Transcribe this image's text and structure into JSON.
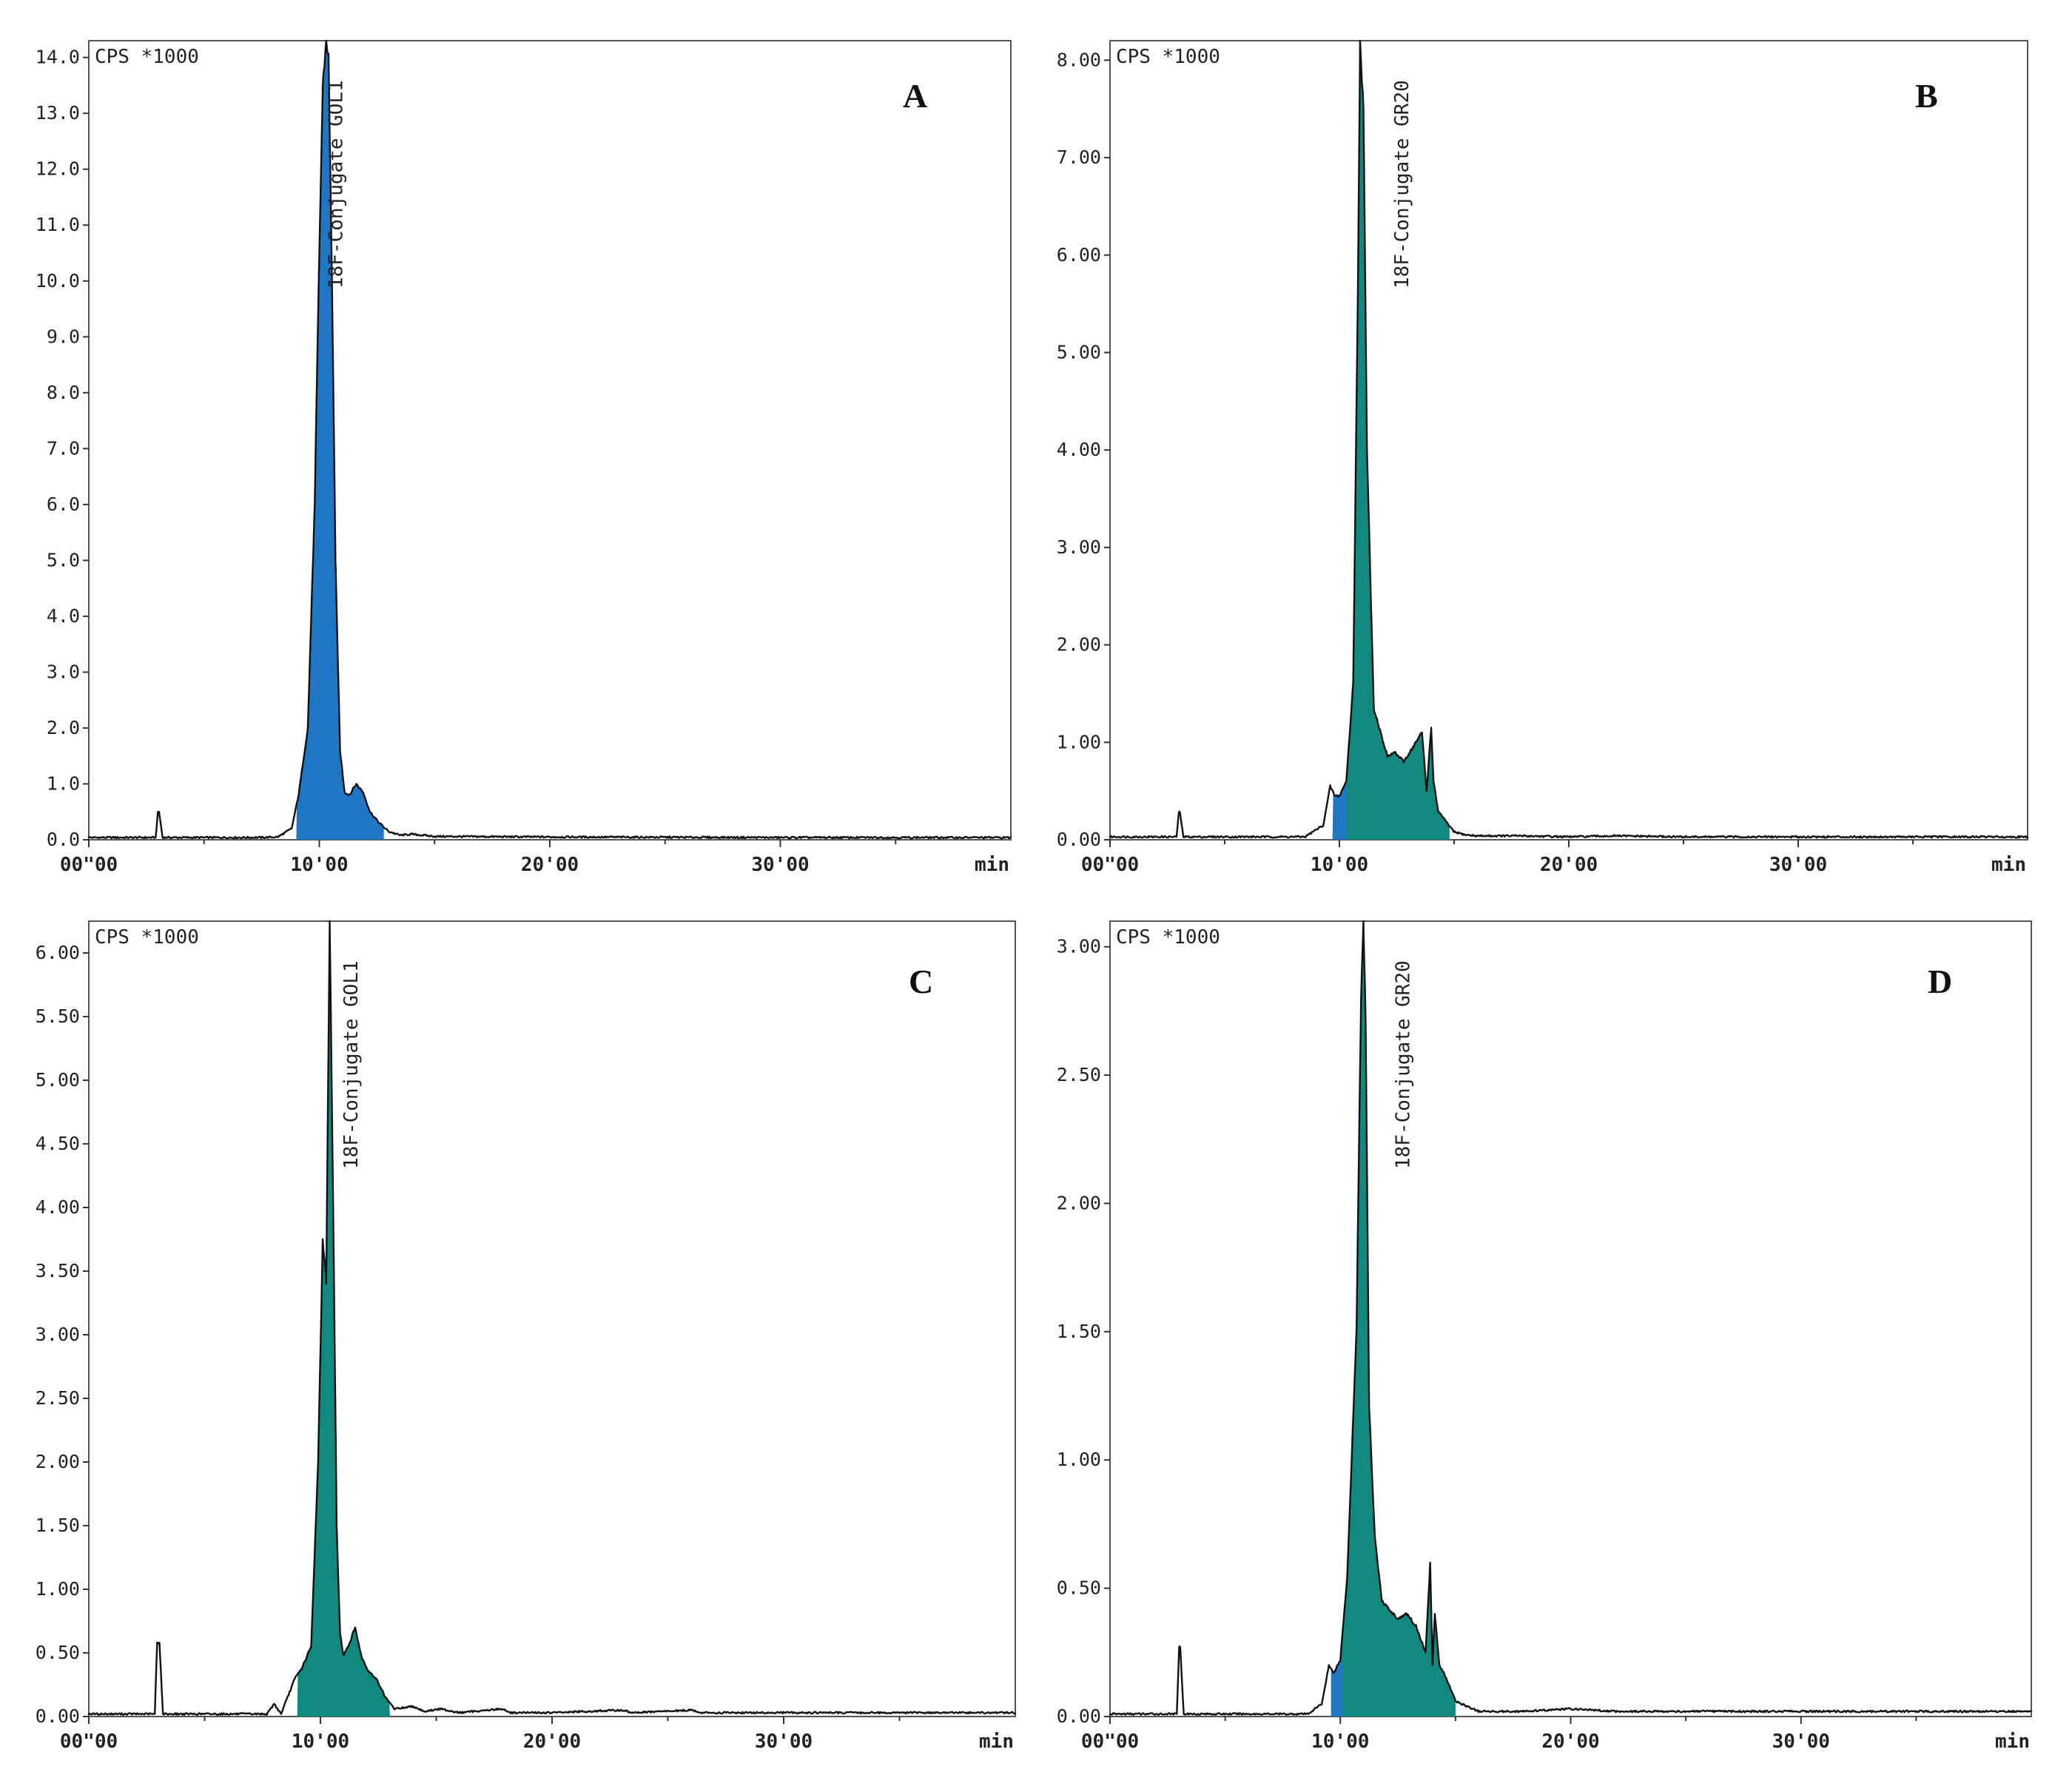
{
  "chart_data": [
    {
      "type": "area",
      "panel": "A",
      "y_unit_label": "CPS *1000",
      "xlabel": "min",
      "xlim": [
        0,
        40
      ],
      "ylim": [
        0,
        14.3
      ],
      "yticks": [
        "0.0",
        "1.0",
        "2.0",
        "3.0",
        "4.0",
        "5.0",
        "6.0",
        "7.0",
        "8.0",
        "9.0",
        "10.0",
        "11.0",
        "12.0",
        "13.0",
        "14.0"
      ],
      "ytick_values": [
        0,
        1,
        2,
        3,
        4,
        5,
        6,
        7,
        8,
        9,
        10,
        11,
        12,
        13,
        14
      ],
      "xticks": [
        "00\"00",
        "10'00",
        "20'00",
        "30'00"
      ],
      "xtick_values": [
        0,
        10,
        20,
        30
      ],
      "fill_color": "#1f77c4",
      "peak_label": "18F-Conjugate GOL1",
      "peak_label_x": 11.0,
      "fill_range": [
        9.0,
        12.8
      ],
      "series": {
        "x": [
          0,
          2.9,
          3.0,
          3.05,
          3.2,
          7.5,
          8.2,
          8.8,
          9.1,
          9.5,
          9.8,
          10.0,
          10.15,
          10.3,
          10.4,
          10.55,
          10.7,
          10.9,
          11.1,
          11.3,
          11.6,
          11.9,
          12.2,
          12.6,
          13.0,
          13.5,
          14.0,
          15,
          20,
          30,
          40
        ],
        "y": [
          0.04,
          0.04,
          0.5,
          0.5,
          0.04,
          0.04,
          0.05,
          0.2,
          0.8,
          2.0,
          6.0,
          10.5,
          13.5,
          14.3,
          14.0,
          10.0,
          5.0,
          1.6,
          0.85,
          0.8,
          1.0,
          0.85,
          0.5,
          0.3,
          0.15,
          0.08,
          0.1,
          0.06,
          0.05,
          0.04,
          0.04
        ]
      }
    },
    {
      "type": "area",
      "panel": "B",
      "y_unit_label": "CPS *1000",
      "xlabel": "min",
      "xlim": [
        0,
        40
      ],
      "ylim": [
        0,
        8.2
      ],
      "yticks": [
        "0.00",
        "1.00",
        "2.00",
        "3.00",
        "4.00",
        "5.00",
        "6.00",
        "7.00",
        "8.00"
      ],
      "ytick_values": [
        0,
        1,
        2,
        3,
        4,
        5,
        6,
        7,
        8
      ],
      "xticks": [
        "00\"00",
        "10'00",
        "20'00",
        "30'00"
      ],
      "xtick_values": [
        0,
        10,
        20,
        30
      ],
      "fill_color": "#12897f",
      "secondary_fill_color": "#1f77c4",
      "peak_label": "18F-Conjugate GR20",
      "peak_label_x": 13.0,
      "fill_range": [
        9.7,
        14.8
      ],
      "secondary_fill_range": [
        9.7,
        10.3
      ],
      "series": {
        "x": [
          0,
          2.9,
          3.0,
          3.05,
          3.2,
          8.5,
          9.3,
          9.6,
          9.8,
          10.0,
          10.3,
          10.6,
          10.8,
          10.9,
          11.05,
          11.2,
          11.5,
          11.8,
          12.1,
          12.4,
          12.8,
          13.2,
          13.6,
          13.8,
          14.0,
          14.1,
          14.3,
          14.6,
          15.0,
          15.5,
          16,
          18,
          20,
          22,
          25,
          30,
          35,
          40
        ],
        "y": [
          0.03,
          0.03,
          0.28,
          0.28,
          0.03,
          0.03,
          0.15,
          0.55,
          0.45,
          0.45,
          0.6,
          1.6,
          5.5,
          8.2,
          7.5,
          4.0,
          1.35,
          1.1,
          0.85,
          0.9,
          0.8,
          0.95,
          1.1,
          0.5,
          1.15,
          0.6,
          0.3,
          0.2,
          0.08,
          0.05,
          0.04,
          0.04,
          0.03,
          0.04,
          0.03,
          0.03,
          0.03,
          0.03
        ]
      }
    },
    {
      "type": "area",
      "panel": "C",
      "y_unit_label": "CPS *1000",
      "xlabel": "min",
      "xlim": [
        0,
        40
      ],
      "ylim": [
        0,
        6.25
      ],
      "yticks": [
        "0.00",
        "0.50",
        "1.00",
        "1.50",
        "2.00",
        "2.50",
        "3.00",
        "3.50",
        "4.00",
        "4.50",
        "5.00",
        "5.50",
        "6.00"
      ],
      "ytick_values": [
        0,
        0.5,
        1,
        1.5,
        2,
        2.5,
        3,
        3.5,
        4,
        4.5,
        5,
        5.5,
        6
      ],
      "xticks": [
        "00\"00",
        "10'00",
        "20'00",
        "30'00"
      ],
      "xtick_values": [
        0,
        10,
        20,
        30
      ],
      "fill_color": "#12897f",
      "peak_label": "18F-Conjugate GOL1",
      "peak_label_x": 11.6,
      "fill_range": [
        9.0,
        13.0
      ],
      "series": {
        "x": [
          0,
          2.85,
          2.95,
          3.05,
          3.2,
          7.7,
          8.0,
          8.3,
          8.9,
          9.2,
          9.6,
          9.9,
          10.1,
          10.25,
          10.4,
          10.55,
          10.7,
          10.85,
          11.0,
          11.2,
          11.5,
          11.8,
          12.1,
          12.4,
          12.8,
          13.2,
          14.0,
          14.5,
          15.2,
          16,
          17.8,
          18.2,
          20,
          23,
          23.5,
          26,
          26.5,
          30,
          35,
          40
        ],
        "y": [
          0.02,
          0.02,
          0.58,
          0.58,
          0.02,
          0.02,
          0.1,
          0.02,
          0.3,
          0.38,
          0.55,
          2.0,
          3.75,
          3.4,
          6.25,
          4.0,
          1.5,
          0.65,
          0.48,
          0.55,
          0.7,
          0.45,
          0.35,
          0.3,
          0.15,
          0.06,
          0.08,
          0.04,
          0.06,
          0.03,
          0.06,
          0.03,
          0.03,
          0.05,
          0.03,
          0.05,
          0.03,
          0.03,
          0.03,
          0.03
        ]
      }
    },
    {
      "type": "area",
      "panel": "D",
      "y_unit_label": "CPS *1000",
      "xlabel": "min",
      "xlim": [
        0,
        40
      ],
      "ylim": [
        0,
        3.1
      ],
      "yticks": [
        "0.00",
        "0.50",
        "1.00",
        "1.50",
        "2.00",
        "2.50",
        "3.00"
      ],
      "ytick_values": [
        0,
        0.5,
        1,
        1.5,
        2,
        2.5,
        3
      ],
      "xticks": [
        "00\"00",
        "10'00",
        "20'00",
        "30'00"
      ],
      "xtick_values": [
        0,
        10,
        20,
        30
      ],
      "fill_color": "#12897f",
      "secondary_fill_color": "#1f77c4",
      "peak_label": "18F-Conjugate GR20",
      "peak_label_x": 13.0,
      "fill_range": [
        9.6,
        15.0
      ],
      "secondary_fill_range": [
        9.6,
        10.1
      ],
      "series": {
        "x": [
          0,
          2.9,
          3.0,
          3.05,
          3.2,
          8.6,
          9.2,
          9.5,
          9.7,
          10.0,
          10.3,
          10.7,
          10.9,
          11.0,
          11.1,
          11.25,
          11.5,
          11.8,
          12.1,
          12.5,
          12.9,
          13.3,
          13.7,
          13.9,
          14.0,
          14.1,
          14.3,
          14.6,
          15.0,
          15.5,
          16,
          18,
          20,
          22,
          25,
          30,
          35,
          40
        ],
        "y": [
          0.01,
          0.01,
          0.27,
          0.27,
          0.01,
          0.01,
          0.05,
          0.2,
          0.17,
          0.22,
          0.55,
          1.5,
          2.8,
          3.1,
          2.7,
          1.2,
          0.7,
          0.45,
          0.42,
          0.38,
          0.4,
          0.35,
          0.25,
          0.6,
          0.2,
          0.4,
          0.2,
          0.15,
          0.06,
          0.04,
          0.02,
          0.02,
          0.03,
          0.02,
          0.02,
          0.02,
          0.02,
          0.02
        ]
      }
    }
  ]
}
